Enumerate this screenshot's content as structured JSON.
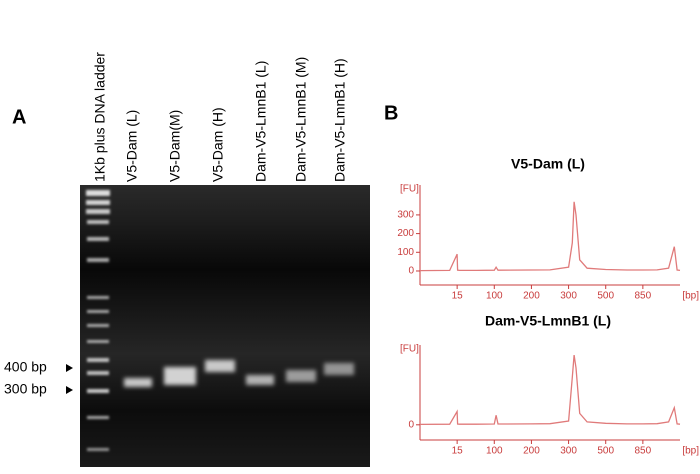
{
  "panel_a": {
    "label": "A",
    "lanes": [
      "1Kb plus DNA ladder",
      "V5-Dam (L)",
      "V5-Dam(M)",
      "V5-Dam (H)",
      "Dam-V5-LmnB1 (L)",
      "Dam-V5-LmnB1 (M)",
      "Dam-V5-LmnB1 (H)"
    ],
    "markers": [
      "400 bp",
      "300 bp"
    ]
  },
  "panel_b": {
    "label": "B"
  },
  "chart_data": [
    {
      "type": "line",
      "title": "V5-Dam (L)",
      "y_label": "[FU]",
      "x_label": "[bp]",
      "color": "#e07a7a",
      "axis_color": "#c83c3c",
      "x": [
        10,
        14,
        15,
        16,
        20,
        60,
        100,
        105,
        110,
        200,
        250,
        300,
        320,
        330,
        340,
        360,
        400,
        500,
        700,
        850,
        1100,
        1300,
        1400,
        1450,
        1500
      ],
      "values": [
        2,
        3,
        90,
        4,
        3,
        3,
        4,
        20,
        4,
        5,
        6,
        20,
        150,
        370,
        300,
        60,
        15,
        8,
        5,
        5,
        6,
        15,
        130,
        5,
        3
      ],
      "xlim": [
        10,
        1500
      ],
      "xticks": [
        15,
        100,
        200,
        300,
        500,
        850
      ],
      "ylim": [
        -75,
        460
      ],
      "yticks": [
        0,
        100,
        200,
        300
      ]
    },
    {
      "type": "line",
      "title": "Dam-V5-LmnB1 (L)",
      "y_label": "[FU]",
      "x_label": "[bp]",
      "color": "#e07a7a",
      "axis_color": "#c83c3c",
      "x": [
        10,
        14,
        15,
        16,
        20,
        60,
        100,
        105,
        110,
        200,
        250,
        300,
        320,
        330,
        340,
        360,
        400,
        500,
        700,
        850,
        1100,
        1300,
        1400,
        1450,
        1500
      ],
      "values": [
        2,
        3,
        70,
        4,
        3,
        3,
        4,
        50,
        4,
        5,
        6,
        20,
        250,
        367,
        300,
        60,
        15,
        8,
        5,
        5,
        6,
        15,
        90,
        5,
        3
      ],
      "xlim": [
        10,
        1500
      ],
      "xticks": [
        15,
        100,
        200,
        300,
        500,
        850
      ],
      "ylim": [
        -80,
        420
      ],
      "yticks": [
        0
      ]
    }
  ]
}
